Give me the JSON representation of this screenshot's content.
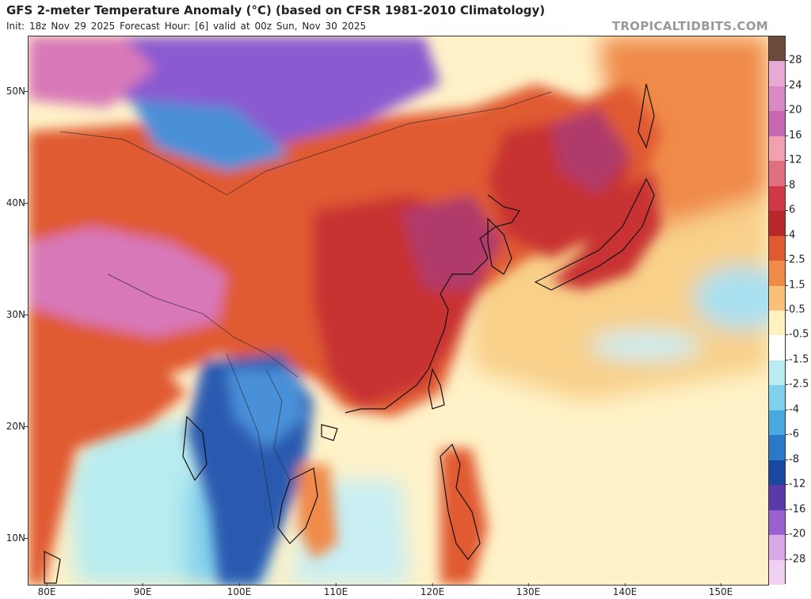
{
  "header": {
    "title": "GFS 2-meter Temperature Anomaly (°C) (based on CFSR 1981-2010 Climatology)",
    "subtitle": "Init: 18z Nov 29 2025   Forecast Hour: [6]   valid at 00z Sun, Nov 30 2025",
    "brand": "TROPICALTIDBITS.COM"
  },
  "axes": {
    "lat_labels": [
      "50N",
      "40N",
      "30N",
      "20N",
      "10N"
    ],
    "lon_labels": [
      "80E",
      "90E",
      "100E",
      "110E",
      "120E",
      "130E",
      "140E",
      "150E"
    ]
  },
  "colorbar": {
    "labels": [
      "28",
      "24",
      "20",
      "16",
      "12",
      "8",
      "6",
      "4",
      "2.5",
      "1.5",
      "0.5",
      "-0.5",
      "-1.5",
      "-2.5",
      "-4",
      "-6",
      "-8",
      "-12",
      "-16",
      "-20",
      "-28"
    ],
    "colors": [
      "#6b4c3a",
      "#e8a9d4",
      "#d88ac6",
      "#c868b2",
      "#f0a0b0",
      "#e07080",
      "#d03848",
      "#b82828",
      "#e05a30",
      "#f08a48",
      "#f8c078",
      "#fff2c0",
      "#ffffff",
      "#b8ecf0",
      "#80d0ec",
      "#4aa8e0",
      "#2a78c8",
      "#1848a0",
      "#5a3aa8",
      "#9a60d0",
      "#d8a8e8",
      "#f0d0f0"
    ]
  },
  "map": {
    "palette": {
      "land_hot": "#c83030",
      "land_very_hot": "#b03a6a",
      "land_warm": "#e05a30",
      "sea_warm": "#f8d08a",
      "sea_neutral": "#fff2c8",
      "cool": "#4a90d8",
      "cold": "#2a5ab0",
      "light_cool": "#a8e0f0",
      "purple": "#8a5ad0",
      "pink": "#d878b8",
      "coast": "#111111"
    }
  }
}
